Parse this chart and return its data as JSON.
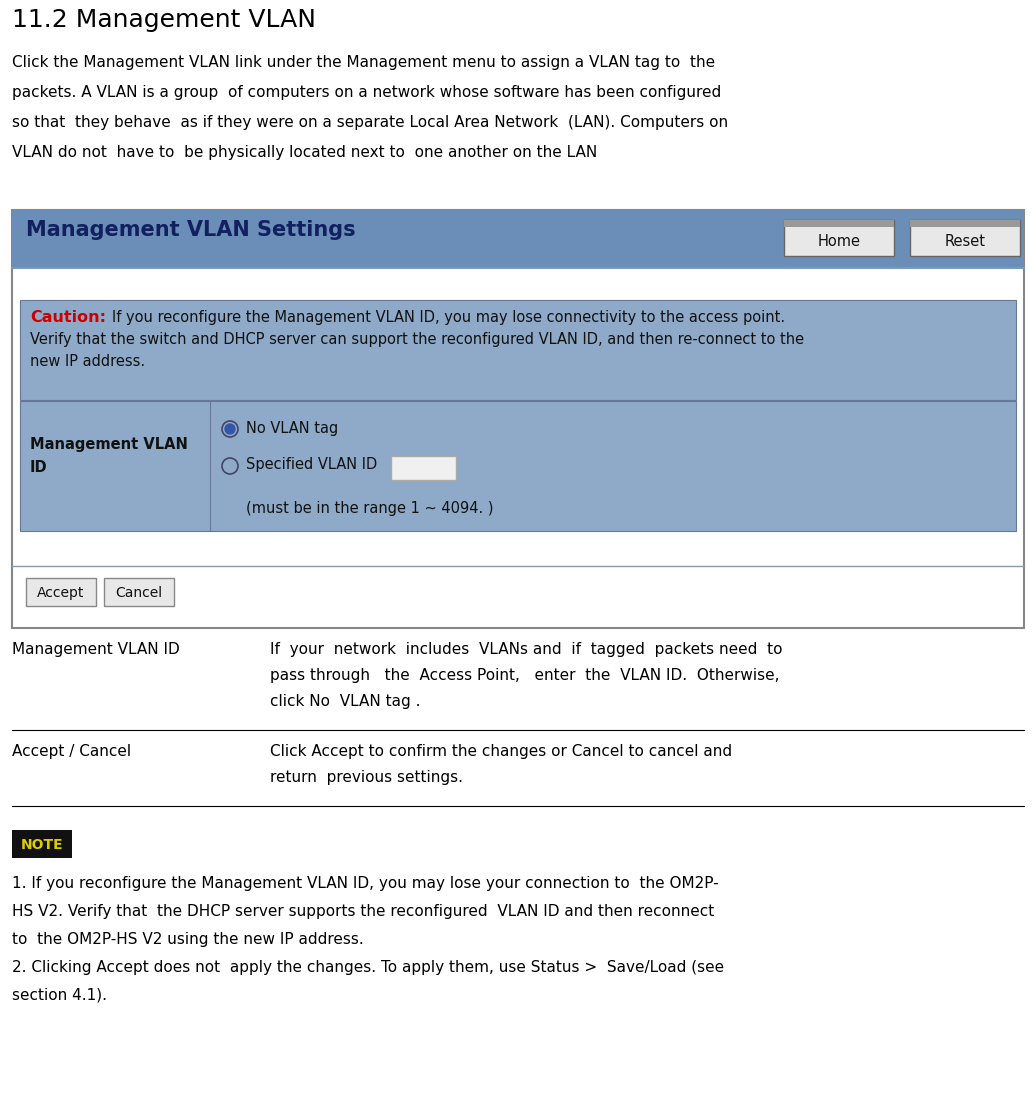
{
  "title": "11.2 Management VLAN",
  "intro_lines": [
    "Click the Management VLAN link under the Management menu to assign a VLAN tag to  the",
    "packets. A VLAN is a group  of computers on a network whose software has been configured",
    "so that  they behave  as if they were on a separate Local Area Network  (LAN). Computers on",
    "VLAN do not  have to  be physically located next to  one another on the LAN"
  ],
  "table_rows": [
    {
      "label": "Management VLAN ID",
      "description_lines": [
        "If  your  network  includes  VLANs and  if  tagged  packets need  to",
        "pass through   the  Access Point,   enter  the  VLAN ID.  Otherwise,",
        "click No  VLAN tag ."
      ]
    },
    {
      "label": "Accept / Cancel",
      "description_lines": [
        "Click Accept to confirm the changes or Cancel to cancel and",
        "return  previous settings."
      ]
    }
  ],
  "note_text_lines": [
    "1. If you reconfigure the Management VLAN ID, you may lose your connection to  the OM2P-",
    "HS V2. Verify that  the DHCP server supports the reconfigured  VLAN ID and then reconnect",
    "to  the OM2P-HS V2 using the new IP address.",
    "2. Clicking Accept does not  apply the changes. To apply them, use Status >  Save/Load (see",
    "section 4.1)."
  ],
  "bg_color": "#ffffff",
  "text_color": "#000000",
  "header_bg": "#6b8eb8",
  "panel_bg": "#8eaac8",
  "caution_red": "#cc0000",
  "btn_bg": "#d8d8d8",
  "btn_border": "#888888",
  "note_badge_bg": "#1a1a1a",
  "note_badge_text": "#ddcc00"
}
